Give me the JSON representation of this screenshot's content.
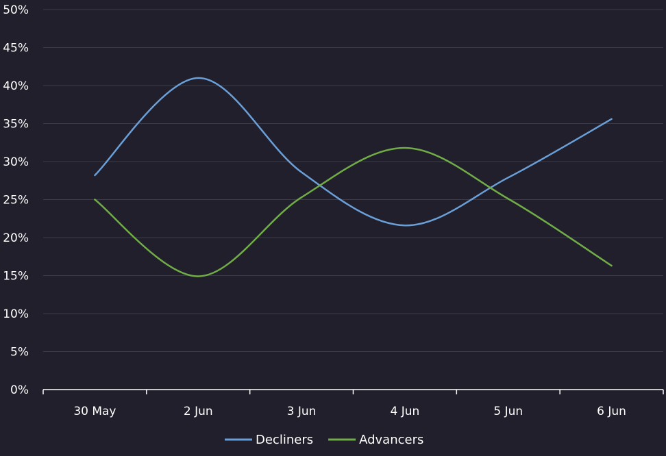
{
  "chart_data": {
    "type": "line",
    "categories": [
      "30 May",
      "2 Jun",
      "3 Jun",
      "4 Jun",
      "5 Jun",
      "6 Jun"
    ],
    "series": [
      {
        "name": "Decliners",
        "color": "#6a9fd8",
        "values": [
          28.2,
          41.0,
          28.6,
          21.6,
          27.9,
          35.6
        ]
      },
      {
        "name": "Advancers",
        "color": "#71ad47",
        "values": [
          25.0,
          14.9,
          25.3,
          31.8,
          25.1,
          16.3
        ]
      }
    ],
    "y_ticks": [
      "0%",
      "5%",
      "10%",
      "15%",
      "20%",
      "25%",
      "30%",
      "35%",
      "40%",
      "45%",
      "50%"
    ],
    "ylim": [
      0,
      50
    ],
    "title": "",
    "xlabel": "",
    "ylabel": "",
    "grid": true,
    "legend": "bottom-center",
    "background": "#201f2b",
    "gridline_color": "#3d3c48",
    "axis_color": "#ffffff"
  }
}
